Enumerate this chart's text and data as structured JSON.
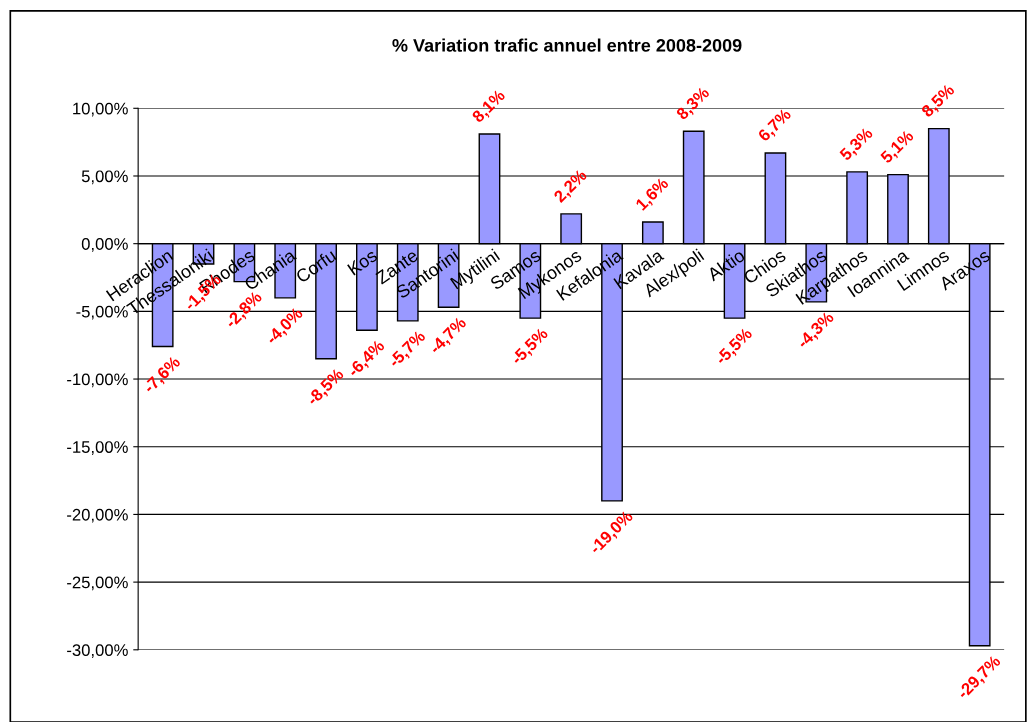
{
  "chart_data": {
    "type": "bar",
    "title": "% Variation trafic annuel entre 2008-2009",
    "categories": [
      "Heraclion",
      "Thessaloniki",
      "Rhodes",
      "Chania",
      "Corfu",
      "Kos",
      "Zante",
      "Santorini",
      "Mytilini",
      "Samos",
      "Mykonos",
      "Kefalonia",
      "Kavala",
      "Alex/poli",
      "Aktio",
      "Chios",
      "Skiathos",
      "Karpathos",
      "Ioannina",
      "Limnos",
      "Araxos"
    ],
    "values": [
      -7.6,
      -1.5,
      -2.8,
      -4.0,
      -8.5,
      -6.4,
      -5.7,
      -4.7,
      8.1,
      -5.5,
      2.2,
      -19.0,
      1.6,
      8.3,
      -5.5,
      6.7,
      -4.3,
      5.3,
      5.1,
      8.5,
      -29.7
    ],
    "value_labels": [
      "-7,6%",
      "-1,5%",
      "-2,8%",
      "-4,0%",
      "-8,5%",
      "-6,4%",
      "-5,7%",
      "-4,7%",
      "8,1%",
      "-5,5%",
      "2,2%",
      "-19,0%",
      "1,6%",
      "8,3%",
      "-5,5%",
      "6,7%",
      "-4,3%",
      "5,3%",
      "5,1%",
      "8,5%",
      "-29,7%"
    ],
    "color": "#9999ff",
    "ylim": [
      -30,
      10
    ],
    "yticks": [
      {
        "value": -30,
        "label": "-30,00%"
      },
      {
        "value": -25,
        "label": "-25,00%"
      },
      {
        "value": -20,
        "label": "-20,00%"
      },
      {
        "value": -15,
        "label": "-15,00%"
      },
      {
        "value": -10,
        "label": "-10,00%"
      },
      {
        "value": -5,
        "label": "-5,00%"
      },
      {
        "value": 0,
        "label": "0,00%"
      },
      {
        "value": 5,
        "label": "5,00%"
      },
      {
        "value": 10,
        "label": "10,00%"
      }
    ],
    "grid": "y"
  }
}
